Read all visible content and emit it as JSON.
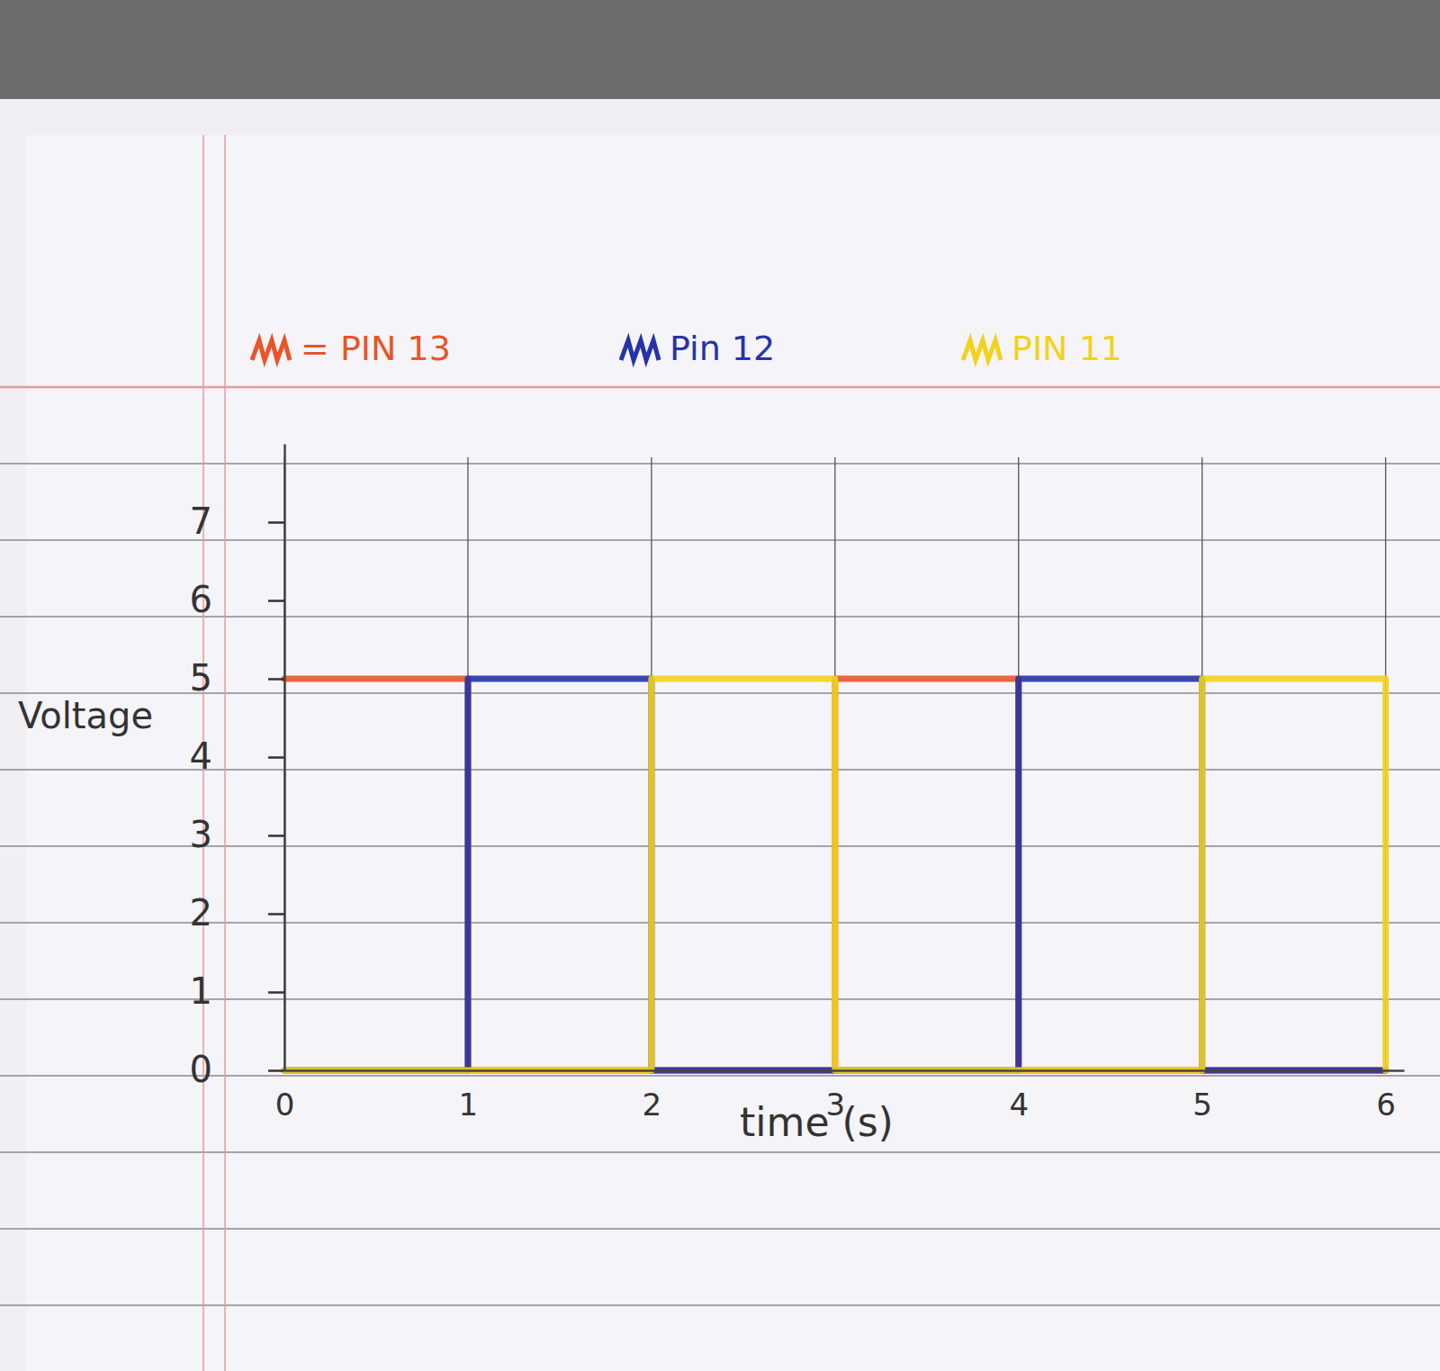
{
  "chart_data": {
    "type": "line",
    "line_style": "step",
    "x_label": "time (s)",
    "y_label": "Voltage",
    "x": [
      0,
      1,
      2,
      3,
      4,
      5,
      6
    ],
    "series": [
      {
        "name": "= PIN 13",
        "color": "#e8552a",
        "values": [
          5,
          0,
          0,
          5,
          0,
          0,
          0
        ]
      },
      {
        "name": "Pin 12",
        "color": "#2633a8",
        "values": [
          0,
          5,
          0,
          0,
          5,
          0,
          0
        ]
      },
      {
        "name": "PIN 11",
        "color": "#f2d21b",
        "values": [
          0,
          0,
          5,
          0,
          0,
          5,
          0
        ]
      }
    ],
    "xlim": [
      0,
      6.1
    ],
    "xticks": [
      0,
      1,
      2,
      3,
      4,
      5,
      6
    ],
    "ylim": [
      0,
      8
    ],
    "yticks": [
      0,
      1,
      2,
      3,
      4,
      5,
      6,
      7
    ],
    "grid": true,
    "legend": "top"
  }
}
